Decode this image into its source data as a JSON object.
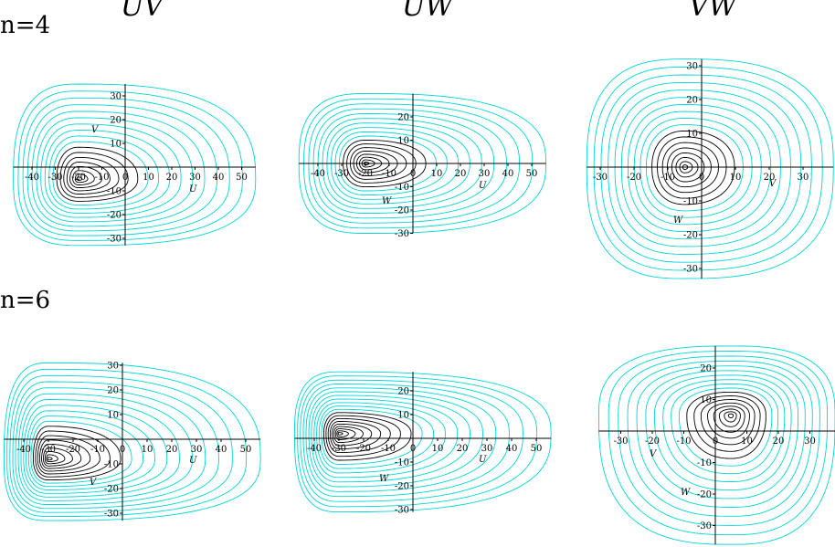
{
  "column_titles": [
    "UV",
    "UW",
    "VW"
  ],
  "row_labels": [
    "n=4",
    "n=6"
  ],
  "colors": {
    "outer_contours": "#00d6d6",
    "inner_contours": "#000000",
    "axes": "#000000"
  },
  "chart_data": [
    {
      "type": "contour",
      "row": "n=4",
      "title": "UV",
      "xlabel": "U",
      "ylabel": "V",
      "xticks": [
        -40,
        -30,
        -20,
        -10,
        0,
        10,
        20,
        30,
        40,
        50
      ],
      "yticks": [
        -30,
        -20,
        -10,
        0,
        10,
        20,
        30
      ],
      "xlim": [
        -48,
        56
      ],
      "ylim": [
        -33,
        35
      ],
      "peak": [
        -20,
        -5
      ],
      "levels": 18
    },
    {
      "type": "contour",
      "row": "n=4",
      "title": "UW",
      "xlabel": "U",
      "ylabel": "W",
      "xticks": [
        -40,
        -30,
        -20,
        -10,
        0,
        10,
        20,
        30,
        40,
        50
      ],
      "yticks": [
        -30,
        -20,
        -10,
        0,
        10,
        20
      ],
      "xlim": [
        -48,
        56
      ],
      "ylim": [
        -30,
        30
      ],
      "peak": [
        -20,
        0
      ],
      "levels": 18
    },
    {
      "type": "contour",
      "row": "n=4",
      "title": "VW",
      "xlabel": "V",
      "ylabel": "W",
      "xticks": [
        -30,
        -20,
        -10,
        0,
        10,
        20,
        30
      ],
      "yticks": [
        -30,
        -20,
        -10,
        0,
        10,
        20,
        30
      ],
      "xlim": [
        -34,
        39
      ],
      "ylim": [
        -33,
        32
      ],
      "peak": [
        -5,
        0
      ],
      "levels": 18
    },
    {
      "type": "contour",
      "row": "n=6",
      "title": "UV",
      "xlabel": "U",
      "ylabel": "V",
      "xticks": [
        -40,
        -30,
        -20,
        -10,
        0,
        10,
        20,
        30,
        40,
        50
      ],
      "yticks": [
        -30,
        -20,
        -10,
        0,
        10,
        20,
        30
      ],
      "xlim": [
        -48,
        56
      ],
      "ylim": [
        -33,
        31
      ],
      "peak": [
        -30,
        -8
      ],
      "levels": 20
    },
    {
      "type": "contour",
      "row": "n=6",
      "title": "UW",
      "xlabel": "U",
      "ylabel": "W",
      "xticks": [
        -40,
        -30,
        -20,
        -10,
        0,
        10,
        20,
        30,
        40,
        50
      ],
      "yticks": [
        -30,
        -20,
        -10,
        0,
        10,
        20
      ],
      "xlim": [
        -48,
        56
      ],
      "ylim": [
        -31,
        28
      ],
      "peak": [
        -30,
        2
      ],
      "levels": 20
    },
    {
      "type": "contour",
      "row": "n=6",
      "title": "VW",
      "xlabel": "V",
      "ylabel": "W",
      "xticks": [
        -30,
        -20,
        -10,
        0,
        10,
        20,
        30
      ],
      "yticks": [
        -30,
        -20,
        -10,
        0,
        10,
        20
      ],
      "xlim": [
        -37,
        38
      ],
      "ylim": [
        -36,
        27
      ],
      "peak": [
        5,
        5
      ],
      "levels": 18
    }
  ]
}
